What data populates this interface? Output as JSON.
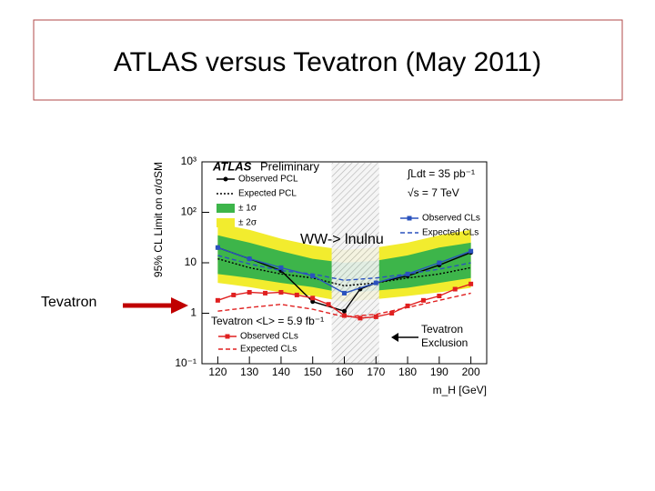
{
  "slide": {
    "title": "ATLAS versus Tevatron (May 2011)",
    "arrow_label": "Tevatron"
  },
  "chart_data": {
    "type": "line",
    "log_y": true,
    "xlim": [
      115,
      205
    ],
    "ylim": [
      0.1,
      1000
    ],
    "xticks": [
      120,
      130,
      140,
      150,
      160,
      170,
      180,
      190,
      200
    ],
    "yticks": [
      {
        "value": 0.1,
        "label": "10⁻¹"
      },
      1,
      10,
      {
        "value": 100,
        "label": "10²"
      },
      {
        "value": 1000,
        "label": "10³"
      }
    ],
    "x_label": "m_H [GeV]",
    "y_label": "95% CL Limit on σ/σSM",
    "atlas": "ATLAS",
    "preliminary": "Preliminary",
    "lumi_atlas": "∫Ldt = 35 pb⁻¹",
    "energy": "√s = 7 TeV",
    "channel": "WW-> lnulnu",
    "lumi_tevatron": "Tevatron <L> = 5.9 fb⁻¹",
    "exclusion_label": [
      "Tevatron",
      "Exclusion"
    ],
    "exclusion": [
      156,
      171
    ],
    "bands": [
      {
        "name": "± 2σ",
        "color": "#f2ec2e",
        "x": [
          120,
          130,
          140,
          150,
          160,
          170,
          180,
          190,
          200
        ],
        "lower": [
          4,
          3.3,
          2.6,
          2.2,
          1.7,
          1.9,
          2.2,
          2.6,
          3.2
        ],
        "upper": [
          60,
          45,
          30,
          22,
          18,
          20,
          25,
          35,
          45
        ]
      },
      {
        "name": "± 1σ",
        "color": "#3db54a",
        "x": [
          120,
          130,
          140,
          150,
          160,
          170,
          180,
          190,
          200
        ],
        "lower": [
          6,
          5,
          4,
          3.3,
          2.5,
          2.8,
          3.2,
          4,
          5
        ],
        "upper": [
          35,
          25,
          17,
          12,
          10,
          11,
          14,
          20,
          25
        ]
      }
    ],
    "series": [
      {
        "name": "Observed PCL",
        "color": "#000000",
        "dash": "none",
        "marker": "circle",
        "x": [
          120,
          130,
          140,
          150,
          160,
          165,
          170,
          180,
          190,
          200
        ],
        "values": [
          20,
          12,
          7,
          1.7,
          1.1,
          3,
          4,
          5.5,
          9,
          16
        ]
      },
      {
        "name": "Expected PCL",
        "color": "#000000",
        "dash": "2,2",
        "marker": "none",
        "x": [
          120,
          130,
          140,
          150,
          160,
          170,
          180,
          190,
          200
        ],
        "values": [
          12,
          8,
          6,
          5,
          3.5,
          4,
          5,
          6,
          8
        ]
      },
      {
        "name": "Observed CLs",
        "color": "#2a52be",
        "dash": "none",
        "marker": "square",
        "x": [
          120,
          130,
          140,
          150,
          160,
          170,
          180,
          190,
          200
        ],
        "values": [
          20,
          12,
          8,
          5.5,
          2.5,
          4,
          6,
          10,
          17
        ]
      },
      {
        "name": "Expected CLs",
        "color": "#2a52be",
        "dash": "5,3",
        "marker": "none",
        "x": [
          120,
          130,
          140,
          150,
          160,
          170,
          180,
          190,
          200
        ],
        "values": [
          14,
          9.5,
          7,
          6,
          4.5,
          5,
          6,
          7.5,
          10
        ]
      },
      {
        "name": "Observed CLs",
        "color": "#e02020",
        "dash": "none",
        "marker": "square",
        "x": [
          120,
          125,
          130,
          135,
          140,
          145,
          150,
          155,
          160,
          165,
          170,
          175,
          180,
          185,
          190,
          195,
          200
        ],
        "values": [
          1.8,
          2.3,
          2.6,
          2.5,
          2.6,
          2.3,
          2,
          1.5,
          0.9,
          0.8,
          0.85,
          1,
          1.4,
          1.8,
          2.2,
          3,
          3.8
        ]
      },
      {
        "name": "Expected CLs",
        "color": "#e02020",
        "dash": "5,3",
        "marker": "none",
        "x": [
          120,
          130,
          140,
          150,
          160,
          170,
          180,
          190,
          200
        ],
        "values": [
          1.1,
          1.3,
          1.5,
          1.2,
          0.85,
          0.95,
          1.3,
          1.8,
          2.5
        ]
      }
    ]
  }
}
